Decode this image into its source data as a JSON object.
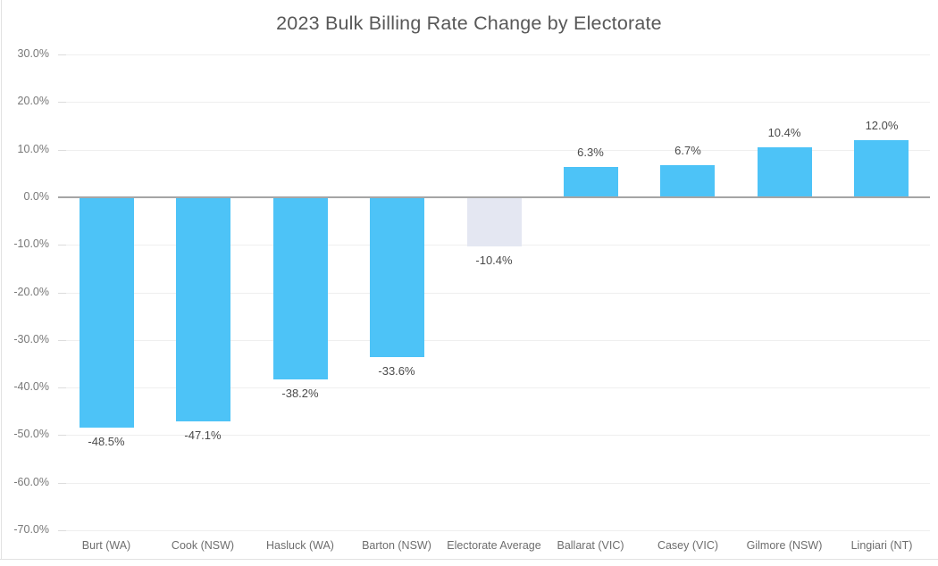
{
  "title": "2023 Bulk Billing Rate Change by Electorate",
  "colors": {
    "bar_default": "#4dc3f7",
    "bar_average_highlight": "#e4e7f2",
    "zero_line": "#a5a5a5",
    "gridline": "#efefef",
    "border": "#e2e2e2",
    "title_text": "#585858",
    "axis_text": "#787878",
    "value_label_text": "#4a4a4a"
  },
  "chart_data": {
    "type": "bar",
    "title": "2023 Bulk Billing Rate Change by Electorate",
    "xlabel": "",
    "ylabel": "",
    "categories": [
      "Burt (WA)",
      "Cook (NSW)",
      "Hasluck (WA)",
      "Barton (NSW)",
      "Electorate Average",
      "Ballarat (VIC)",
      "Casey (VIC)",
      "Gilmore (NSW)",
      "Lingiari (NT)"
    ],
    "values": [
      -48.5,
      -47.1,
      -38.2,
      -33.6,
      -10.4,
      6.3,
      6.7,
      10.4,
      12.0
    ],
    "value_labels": [
      "-48.5%",
      "-47.1%",
      "-38.2%",
      "-33.6%",
      "-10.4%",
      "6.3%",
      "6.7%",
      "10.4%",
      "12.0%"
    ],
    "bar_colors": [
      "#4dc3f7",
      "#4dc3f7",
      "#4dc3f7",
      "#4dc3f7",
      "#e4e7f2",
      "#4dc3f7",
      "#4dc3f7",
      "#4dc3f7",
      "#4dc3f7"
    ],
    "ylim": [
      -70,
      30
    ],
    "ytick_values": [
      30,
      20,
      10,
      0,
      -10,
      -20,
      -30,
      -40,
      -50,
      -60,
      -70
    ],
    "ytick_labels": [
      "30.0%",
      "20.0%",
      "10.0%",
      "0.0%",
      "-10.0%",
      "-20.0%",
      "-30.0%",
      "-40.0%",
      "-50.0%",
      "-60.0%",
      "-70.0%"
    ],
    "grid": true,
    "legend": "none"
  }
}
